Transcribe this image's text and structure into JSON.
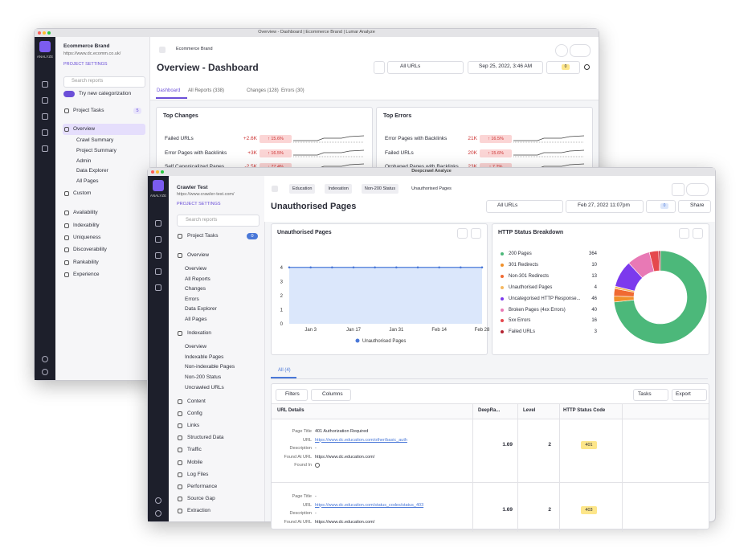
{
  "back": {
    "window_title": "Overview - Dashboard | Ecommerce Brand | Lumar Analyze",
    "rail_label": "ANALYZE",
    "brand": "Ecommerce Brand",
    "url": "https://www.dc.ecomm.co.uk/",
    "project_settings": "PROJECT SETTINGS",
    "search_placeholder": "Search reports",
    "toggle_label": "Try new categorization",
    "project_tasks": "Project Tasks",
    "project_tasks_count": 5,
    "nav": [
      "Overview",
      "Crawl Summary",
      "Project Summary",
      "Admin",
      "Data Explorer",
      "All Pages",
      "Custom",
      "Availability",
      "Indexability",
      "Uniqueness",
      "Discoverability",
      "Rankability",
      "Experience"
    ],
    "breadcrumb": "Ecommerce Brand",
    "page_title": "Overview - Dashboard",
    "url_filter": "All URLs",
    "date": "Sep 25, 2022, 3:46 AM",
    "refresh_count": 0,
    "tabs": [
      "Dashboard",
      "All Reports (338)",
      "Changes (128)",
      "Errors (30)"
    ],
    "top_changes": {
      "title": "Top Changes",
      "rows": [
        {
          "label": "Failed URLs",
          "value": "+2.6K",
          "change": "↑ 15.6%"
        },
        {
          "label": "Error Pages with Backlinks",
          "value": "+3K",
          "change": "↑ 16.5%"
        },
        {
          "label": "Self Canonicalized Pages",
          "value": "-2.5K",
          "change": "↓ 77.4%"
        }
      ]
    },
    "top_errors": {
      "title": "Top Errors",
      "rows": [
        {
          "label": "Error Pages with Backlinks",
          "value": "21K",
          "change": "↑ 16.5%"
        },
        {
          "label": "Failed URLs",
          "value": "20K",
          "change": "↑ 15.6%"
        },
        {
          "label": "Orphaned Pages with Backlinks",
          "value": "23K",
          "change": "↑ 7.2%"
        }
      ]
    }
  },
  "front": {
    "window_title": "Deepcrawl Analyze",
    "rail_label": "ANALYZE",
    "brand": "Crawler Test",
    "url": "https://www.crawler-test.com/",
    "project_settings": "PROJECT SETTINGS",
    "search_placeholder": "Search reports",
    "project_tasks": "Project Tasks",
    "project_tasks_count": 0,
    "nav": [
      {
        "title": "Overview",
        "items": [
          "Overview",
          "All Reports",
          "Changes",
          "Errors",
          "Data Explorer",
          "All Pages"
        ]
      },
      {
        "title": "Indexation",
        "items": [
          "Overview",
          "Indexable Pages",
          "Non-indexable Pages",
          "Non-200 Status",
          "Uncrawled URLs"
        ]
      },
      {
        "title": "Content"
      },
      {
        "title": "Config"
      },
      {
        "title": "Links"
      },
      {
        "title": "Structured Data"
      },
      {
        "title": "Traffic"
      },
      {
        "title": "Mobile"
      },
      {
        "title": "Log Files"
      },
      {
        "title": "Performance"
      },
      {
        "title": "Source Gap"
      },
      {
        "title": "Extraction"
      }
    ],
    "breadcrumb": [
      "Education",
      "Indexation",
      "Non-200 Status",
      "Unauthorised Pages"
    ],
    "page_title": "Unauthorised Pages",
    "url_filter": "All URLs",
    "date": "Feb 27, 2022 11:07pm",
    "refresh_count": 0,
    "share": "Share",
    "line_chart": {
      "type": "line",
      "title": "Unauthorised Pages",
      "categories": [
        null,
        "Jan 3",
        null,
        "Jan 17",
        null,
        "Jan 31",
        null,
        "Feb 14",
        null,
        "Feb 28"
      ],
      "series": [
        {
          "name": "Unauthorised Pages",
          "color": "#4a78d8",
          "values": [
            4,
            4,
            4,
            4,
            4,
            4,
            4,
            4,
            4,
            4
          ]
        }
      ],
      "ylim": [
        0,
        4.5
      ],
      "yticks": [
        0,
        1,
        2,
        3,
        4
      ],
      "grid": false
    },
    "status_chart": {
      "type": "donut",
      "title": "HTTP Status Breakdown",
      "categories": [
        "200 Pages",
        "301 Redirects",
        "Non-301 Redirects",
        "Unauthorised Pages",
        "Uncategorised HTTP Response...",
        "Broken Pages (4xx Errors)",
        "5xx Errors",
        "Failed URLs"
      ],
      "values": [
        364,
        10,
        13,
        4,
        46,
        40,
        16,
        3
      ],
      "colors": [
        "#4cb87a",
        "#f0902a",
        "#f06a32",
        "#f5b860",
        "#7c3aed",
        "#e879b5",
        "#e5484d",
        "#b42332"
      ]
    },
    "tab": "All (4)",
    "filters": "Filters",
    "columns": "Columns",
    "tasks": "Tasks",
    "export": "Export",
    "table": {
      "headers": [
        "URL Details",
        "DeepRa...",
        "Level",
        "HTTP Status Code"
      ],
      "rows": [
        {
          "fields": [
            {
              "label": "Page Title",
              "value": "401 Authorization Required"
            },
            {
              "label": "URL",
              "value": "https://www.dc.education.com/other/basic_auth"
            },
            {
              "label": "Description",
              "value": "-"
            },
            {
              "label": "Found At URL",
              "value": "https://www.dc.education.com/"
            },
            {
              "label": "Found In"
            }
          ],
          "deeprank": 1.69,
          "level": 2,
          "status": 401
        },
        {
          "fields": [
            {
              "label": "Page Title",
              "value": "-"
            },
            {
              "label": "URL",
              "value": "https://www.dc.education.com/status_codes/status_403"
            },
            {
              "label": "Description",
              "value": "-"
            },
            {
              "label": "Found At URL",
              "value": "https://www.dc.education.com/"
            }
          ],
          "deeprank": 1.69,
          "level": 2,
          "status": 403
        }
      ]
    }
  }
}
